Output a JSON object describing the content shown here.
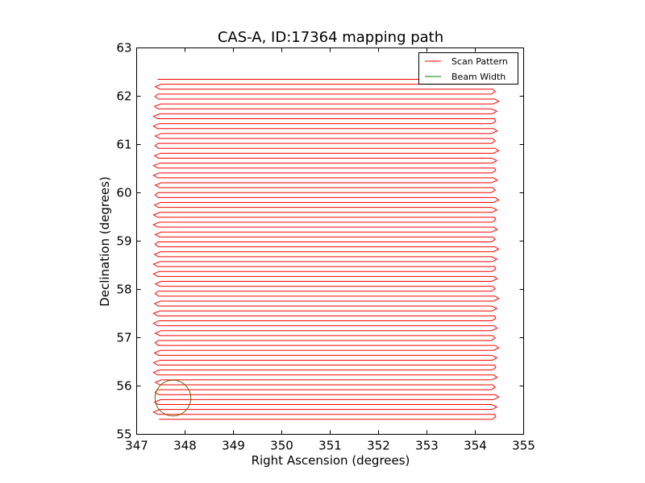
{
  "chart_data": {
    "type": "line",
    "title": "CAS-A, ID:17364 mapping path",
    "xlabel": "Right Ascension (degrees)",
    "ylabel": "Declination (degrees)",
    "xlim": [
      347,
      355
    ],
    "ylim": [
      55,
      63
    ],
    "xticks": [
      347,
      348,
      349,
      350,
      351,
      352,
      353,
      354,
      355
    ],
    "yticks": [
      55,
      56,
      57,
      58,
      59,
      60,
      61,
      62,
      63
    ],
    "grid": false,
    "legend": {
      "placement": "top-right"
    },
    "series": [
      {
        "name": "Scan Pattern",
        "color": "#ff0000",
        "pattern": "raster",
        "x_range": [
          347.4,
          354.4
        ],
        "dec_start": 55.31,
        "dec_end": 62.35,
        "n_legs": 70
      },
      {
        "name": "Beam Width",
        "color": "#008000",
        "shape": "circle",
        "center": [
          347.75,
          55.75
        ],
        "radius": 0.37
      }
    ]
  }
}
